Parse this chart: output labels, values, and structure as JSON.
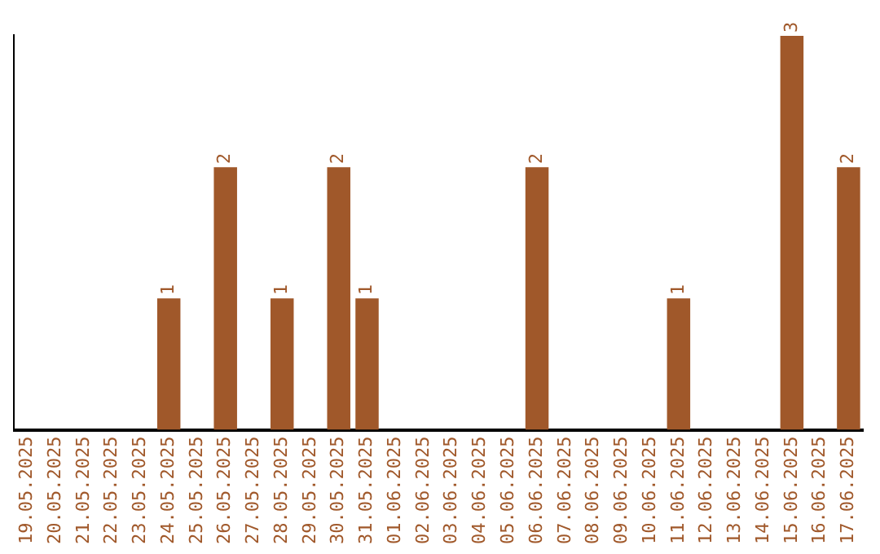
{
  "chart_data": {
    "type": "bar",
    "categories": [
      "19.05.2025",
      "20.05.2025",
      "21.05.2025",
      "22.05.2025",
      "23.05.2025",
      "24.05.2025",
      "25.05.2025",
      "26.05.2025",
      "27.05.2025",
      "28.05.2025",
      "29.05.2025",
      "30.05.2025",
      "31.05.2025",
      "01.06.2025",
      "02.06.2025",
      "03.06.2025",
      "04.06.2025",
      "05.06.2025",
      "06.06.2025",
      "07.06.2025",
      "08.06.2025",
      "09.06.2025",
      "10.06.2025",
      "11.06.2025",
      "12.06.2025",
      "13.06.2025",
      "14.06.2025",
      "15.06.2025",
      "16.06.2025",
      "17.06.2025"
    ],
    "values": [
      null,
      null,
      null,
      null,
      null,
      1,
      null,
      2,
      null,
      1,
      null,
      2,
      1,
      null,
      null,
      null,
      null,
      null,
      2,
      null,
      null,
      null,
      null,
      1,
      null,
      null,
      null,
      3,
      null,
      2
    ],
    "color": "#a0582a",
    "data_labels": true,
    "grid": false,
    "legend": false,
    "tick_labels": "x"
  }
}
